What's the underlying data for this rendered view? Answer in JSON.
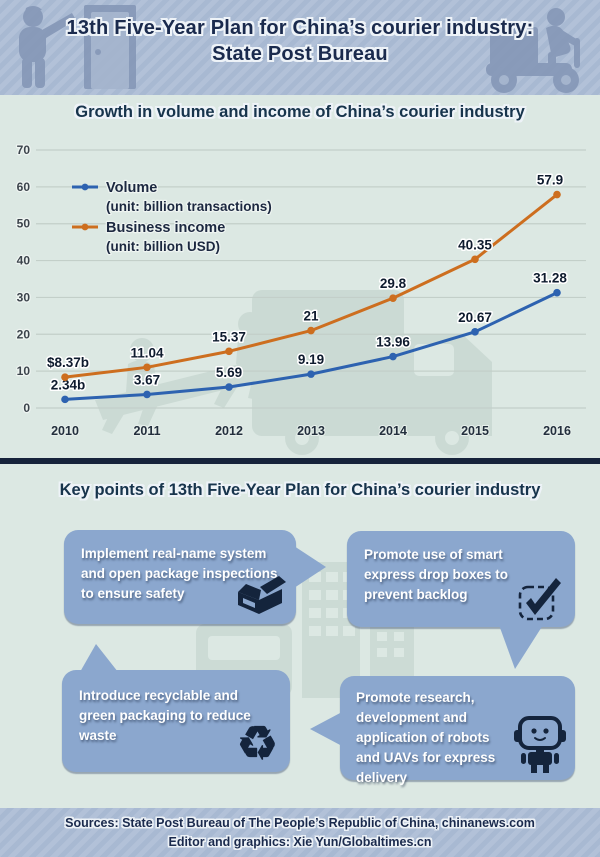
{
  "header": {
    "title_line1": "13th Five-Year Plan for China’s courier industry:",
    "title_line2": "State Post Bureau"
  },
  "chart_section": {
    "title": "Growth in volume and income of China’s courier industry"
  },
  "chart_data": {
    "type": "line",
    "title": "Growth in volume and income of China’s courier industry",
    "categories": [
      "2010",
      "2011",
      "2012",
      "2013",
      "2014",
      "2015",
      "2016"
    ],
    "series": [
      {
        "name": "Volume",
        "unit": "(unit: billion transactions)",
        "color": "#2d62b0",
        "values": [
          2.34,
          3.67,
          5.69,
          9.19,
          13.96,
          20.67,
          31.28
        ],
        "labels": [
          "2.34b",
          "3.67",
          "5.69",
          "9.19",
          "13.96",
          "20.67",
          "31.28"
        ]
      },
      {
        "name": "Business income",
        "unit": "(unit: billion USD)",
        "color": "#cd6e1f",
        "values": [
          8.37,
          11.04,
          15.37,
          21,
          29.8,
          40.35,
          57.9
        ],
        "labels": [
          "$8.37b",
          "11.04",
          "15.37",
          "21",
          "29.8",
          "40.35",
          "57.9"
        ]
      }
    ],
    "ylim": [
      0,
      70
    ],
    "yticks": [
      0,
      10,
      20,
      30,
      40,
      50,
      60,
      70
    ],
    "grid": true,
    "legend_position": "top-left"
  },
  "key_points": {
    "title": "Key points of 13th Five-Year Plan for China’s courier industry",
    "items": [
      {
        "text": "Implement real-name system and open package inspections to ensure safety",
        "icon": "open-package-icon"
      },
      {
        "text": "Promote use of smart express drop boxes to prevent backlog",
        "icon": "checked-box-icon"
      },
      {
        "text": "Introduce recyclable and green packaging to reduce waste",
        "icon": "recycle-icon",
        "glyph": "♻"
      },
      {
        "text": "Promote research, development and application of robots and UAVs for express delivery",
        "icon": "robot-icon"
      }
    ]
  },
  "footer": {
    "sources": "Sources: State Post Bureau of The People’s Republic of China, chinanews.com",
    "credits": "Editor and graphics: Xie Yun/Globaltimes.cn"
  },
  "colors": {
    "navy": "#14243c",
    "bubble": "#8ba7ce",
    "volume_line": "#2d62b0",
    "income_line": "#cd6e1f",
    "band_stripe": "#aab9d2",
    "background": "#dce8e3",
    "watermark": "#cbdad4",
    "gridline": "#c3cfc9"
  }
}
